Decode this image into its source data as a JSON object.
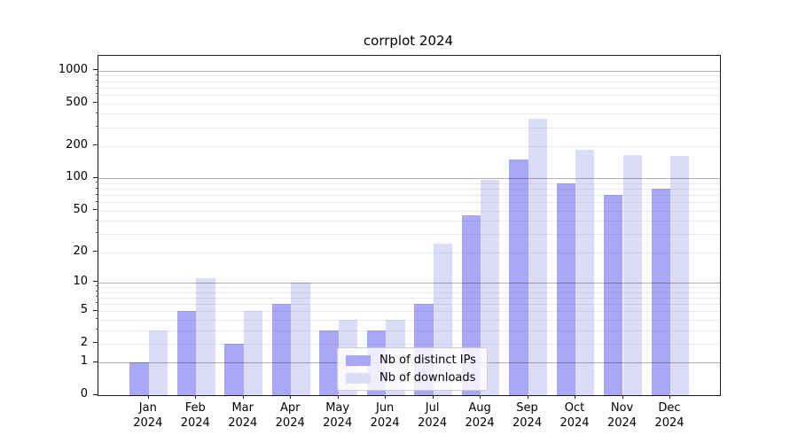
{
  "chart_data": {
    "type": "bar",
    "title": "corrplot 2024",
    "categories": [
      "Jan",
      "Feb",
      "Mar",
      "Apr",
      "May",
      "Jun",
      "Jul",
      "Aug",
      "Sep",
      "Oct",
      "Nov",
      "Dec"
    ],
    "year_label": "2024",
    "series": [
      {
        "name": "Nb of distinct IPs",
        "color": "#a8a8f7",
        "values": [
          1,
          5,
          2,
          6,
          3,
          3,
          6,
          45,
          150,
          90,
          70,
          80
        ]
      },
      {
        "name": "Nb of downloads",
        "color": "#dcdcf9",
        "values": [
          3,
          11,
          5,
          10,
          4,
          4,
          24,
          97,
          360,
          185,
          165,
          162
        ]
      }
    ],
    "yscale": "log1p",
    "ylim": [
      0,
      1374
    ],
    "ytick_labels": [
      0,
      1,
      2,
      5,
      10,
      20,
      50,
      100,
      200,
      500,
      1000
    ],
    "major_grid": [
      1,
      10,
      100,
      1000
    ],
    "minor_grid": [
      2,
      3,
      4,
      5,
      6,
      7,
      8,
      9,
      20,
      30,
      40,
      50,
      60,
      70,
      80,
      90,
      200,
      300,
      400,
      500,
      600,
      700,
      800,
      900
    ],
    "legend_position": "inside-bottom-center",
    "grid_on": true,
    "colors": {
      "spine": "#1a1a1a",
      "major_grid": "rgba(0,0,0,0.30)",
      "minor_grid": "rgba(0,0,0,0.08)",
      "background": "#ffffff",
      "text": "#000000"
    }
  }
}
